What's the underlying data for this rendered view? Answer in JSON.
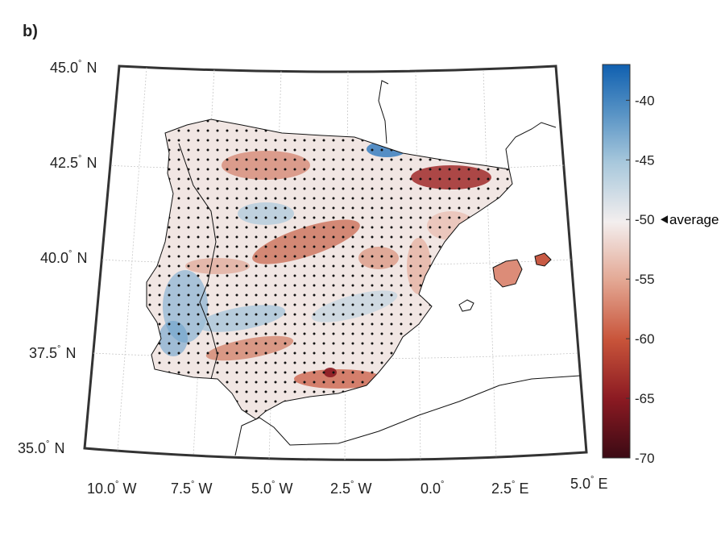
{
  "panel_label": "b)",
  "latitude_labels": [
    "45.0",
    "42.5",
    "40.0",
    "37.5",
    "35.0"
  ],
  "latitude_hemisphere": "N",
  "longitude_labels": [
    {
      "value": "10.0",
      "dir": "W"
    },
    {
      "value": "7.5",
      "dir": "W"
    },
    {
      "value": "5.0",
      "dir": "W"
    },
    {
      "value": "2.5",
      "dir": "W"
    },
    {
      "value": "0.0",
      "dir": ""
    },
    {
      "value": "2.5",
      "dir": "E"
    },
    {
      "value": "5.0",
      "dir": "E"
    }
  ],
  "degree_symbol": "°",
  "colorbar": {
    "ticks": [
      "-40",
      "-45",
      "-50",
      "-55",
      "-60",
      "-65",
      "-70"
    ],
    "range": [
      -70,
      -37
    ],
    "average_value": -50,
    "average_label": "average",
    "colors": [
      "#3b0a14",
      "#8b1a22",
      "#c8543a",
      "#e3a793",
      "#f3eeee",
      "#a8c8dc",
      "#5591c4",
      "#1060b0"
    ]
  },
  "grid": "on",
  "projection": "conic"
}
